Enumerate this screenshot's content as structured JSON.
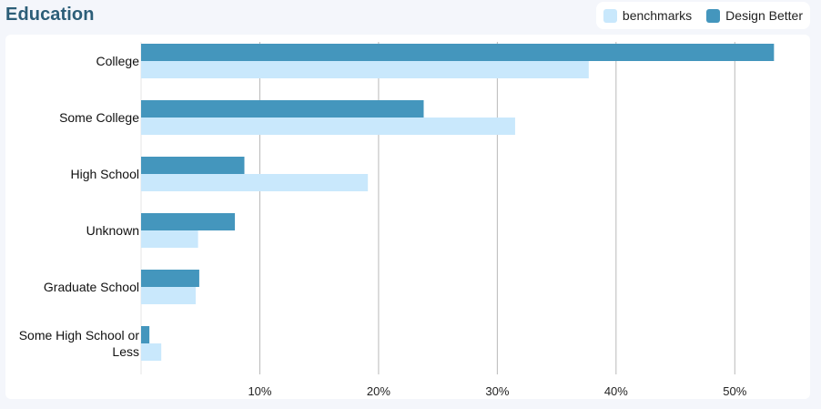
{
  "title": "Education",
  "legend": [
    {
      "label": "benchmarks",
      "color": "#c9e8fc"
    },
    {
      "label": "Design Better",
      "color": "#4496bd"
    }
  ],
  "chart_data": {
    "type": "bar",
    "orientation": "horizontal",
    "title": "Education",
    "categories": [
      "College",
      "Some College",
      "High School",
      "Unknown",
      "Graduate School",
      "Some High School or Less"
    ],
    "category_lines": [
      [
        "College"
      ],
      [
        "Some College"
      ],
      [
        "High School"
      ],
      [
        "Unknown"
      ],
      [
        "Graduate School"
      ],
      [
        "Some High School or",
        "Less"
      ]
    ],
    "series": [
      {
        "name": "Design Better",
        "color": "#4496bd",
        "values": [
          53.3,
          23.8,
          8.7,
          7.9,
          4.9,
          0.7
        ]
      },
      {
        "name": "benchmarks",
        "color": "#c9e8fc",
        "values": [
          37.7,
          31.5,
          19.1,
          4.8,
          4.6,
          1.7
        ]
      }
    ],
    "xlim": [
      0,
      54.5
    ],
    "ticks": [
      10,
      20,
      30,
      40,
      50
    ],
    "tick_labels": [
      "10%",
      "20%",
      "30%",
      "40%",
      "50%"
    ],
    "grid": true,
    "legend_position": "top-right"
  }
}
